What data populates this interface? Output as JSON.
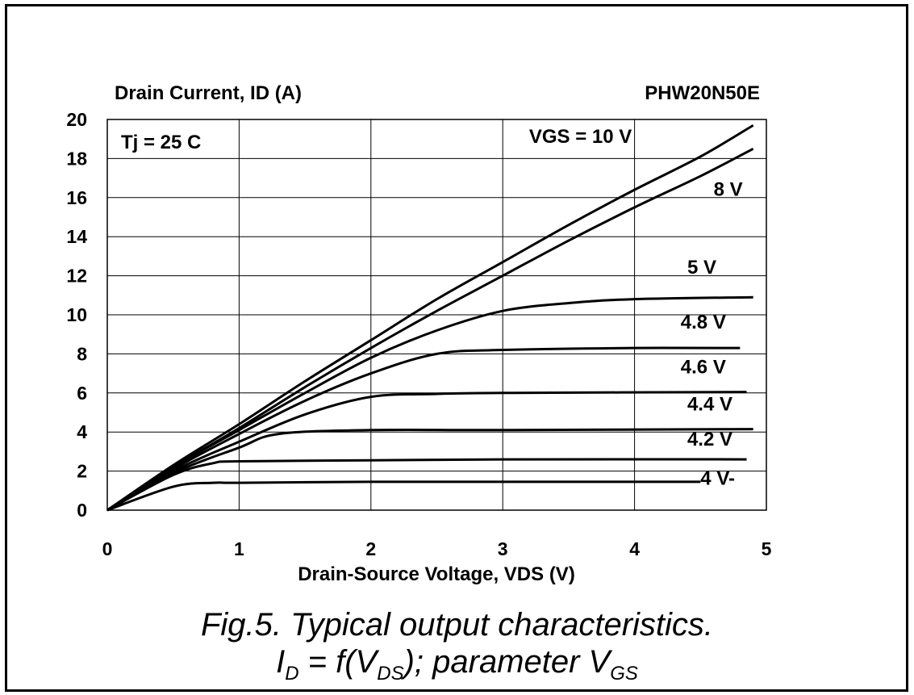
{
  "chart_data": {
    "type": "line",
    "title": "PHW20N50E",
    "ylabel": "Drain Current, ID (A)",
    "xlabel": "Drain-Source Voltage, VDS (V)",
    "annotation": "Tj = 25 C",
    "xlim": [
      0,
      5
    ],
    "ylim": [
      0,
      20
    ],
    "xticks": [
      "0",
      "1",
      "2",
      "3",
      "4",
      "5"
    ],
    "yticks": [
      "0",
      "2",
      "4",
      "6",
      "8",
      "10",
      "12",
      "14",
      "16",
      "18",
      "20"
    ],
    "grid": true,
    "series": [
      {
        "name": "VGS = 10 V",
        "points": [
          [
            0,
            0
          ],
          [
            0.5,
            2.3
          ],
          [
            1,
            4.4
          ],
          [
            1.5,
            6.6
          ],
          [
            2,
            8.7
          ],
          [
            2.5,
            10.8
          ],
          [
            3,
            12.7
          ],
          [
            3.5,
            14.6
          ],
          [
            4,
            16.4
          ],
          [
            4.5,
            18.1
          ],
          [
            4.9,
            19.7
          ]
        ]
      },
      {
        "name": "8 V",
        "points": [
          [
            0,
            0
          ],
          [
            0.5,
            2.2
          ],
          [
            1,
            4.2
          ],
          [
            1.5,
            6.3
          ],
          [
            2,
            8.3
          ],
          [
            2.5,
            10.2
          ],
          [
            3,
            12.0
          ],
          [
            3.5,
            13.8
          ],
          [
            4,
            15.5
          ],
          [
            4.5,
            17.1
          ],
          [
            4.9,
            18.5
          ]
        ]
      },
      {
        "name": "5 V",
        "points": [
          [
            0,
            0
          ],
          [
            0.5,
            2.2
          ],
          [
            1,
            4.1
          ],
          [
            1.5,
            6.0
          ],
          [
            2,
            7.8
          ],
          [
            2.5,
            9.2
          ],
          [
            3,
            10.2
          ],
          [
            3.5,
            10.6
          ],
          [
            4,
            10.8
          ],
          [
            4.9,
            10.9
          ]
        ]
      },
      {
        "name": "4.8 V",
        "points": [
          [
            0,
            0
          ],
          [
            0.5,
            2.1
          ],
          [
            1,
            3.9
          ],
          [
            1.5,
            5.6
          ],
          [
            2,
            7.0
          ],
          [
            2.5,
            8.0
          ],
          [
            3,
            8.2
          ],
          [
            4,
            8.3
          ],
          [
            4.8,
            8.3
          ]
        ]
      },
      {
        "name": "4.6 V",
        "points": [
          [
            0,
            0
          ],
          [
            0.5,
            2.0
          ],
          [
            1,
            3.5
          ],
          [
            1.5,
            4.9
          ],
          [
            2,
            5.8
          ],
          [
            2.5,
            5.95
          ],
          [
            3,
            6.0
          ],
          [
            4.85,
            6.05
          ]
        ]
      },
      {
        "name": "4.4 V",
        "points": [
          [
            0,
            0
          ],
          [
            0.5,
            1.9
          ],
          [
            1,
            3.2
          ],
          [
            1.3,
            3.9
          ],
          [
            2,
            4.1
          ],
          [
            3,
            4.1
          ],
          [
            4.9,
            4.15
          ]
        ]
      },
      {
        "name": "4.2 V",
        "points": [
          [
            0,
            0
          ],
          [
            0.5,
            1.8
          ],
          [
            0.8,
            2.4
          ],
          [
            1,
            2.5
          ],
          [
            2,
            2.55
          ],
          [
            3,
            2.6
          ],
          [
            4.85,
            2.6
          ]
        ]
      },
      {
        "name": "4 V",
        "points": [
          [
            0,
            0
          ],
          [
            0.5,
            1.2
          ],
          [
            0.8,
            1.4
          ],
          [
            1,
            1.4
          ],
          [
            2,
            1.45
          ],
          [
            3,
            1.45
          ],
          [
            4.5,
            1.45
          ]
        ]
      }
    ],
    "curve_labels": [
      {
        "text": "VGS = 10 V",
        "at": [
          3.2,
          18.8
        ]
      },
      {
        "text": "8 V",
        "at": [
          4.6,
          16.1
        ]
      },
      {
        "text": "5 V",
        "at": [
          4.4,
          12.1
        ]
      },
      {
        "text": "4.8 V",
        "at": [
          4.35,
          9.3
        ]
      },
      {
        "text": "4.6 V",
        "at": [
          4.35,
          7.0
        ]
      },
      {
        "text": "4.4 V",
        "at": [
          4.4,
          5.1
        ]
      },
      {
        "text": "4.2 V",
        "at": [
          4.4,
          3.3
        ]
      },
      {
        "text": "4 V-",
        "at": [
          4.5,
          1.3
        ]
      }
    ]
  },
  "caption": {
    "line1": "Fig.5.  Typical output characteristics.",
    "line2_prefix": "I",
    "line2_sub1": "D",
    "line2_mid": " = f(V",
    "line2_sub2": "DS",
    "line2_mid2": "); parameter V",
    "line2_sub3": "GS"
  }
}
